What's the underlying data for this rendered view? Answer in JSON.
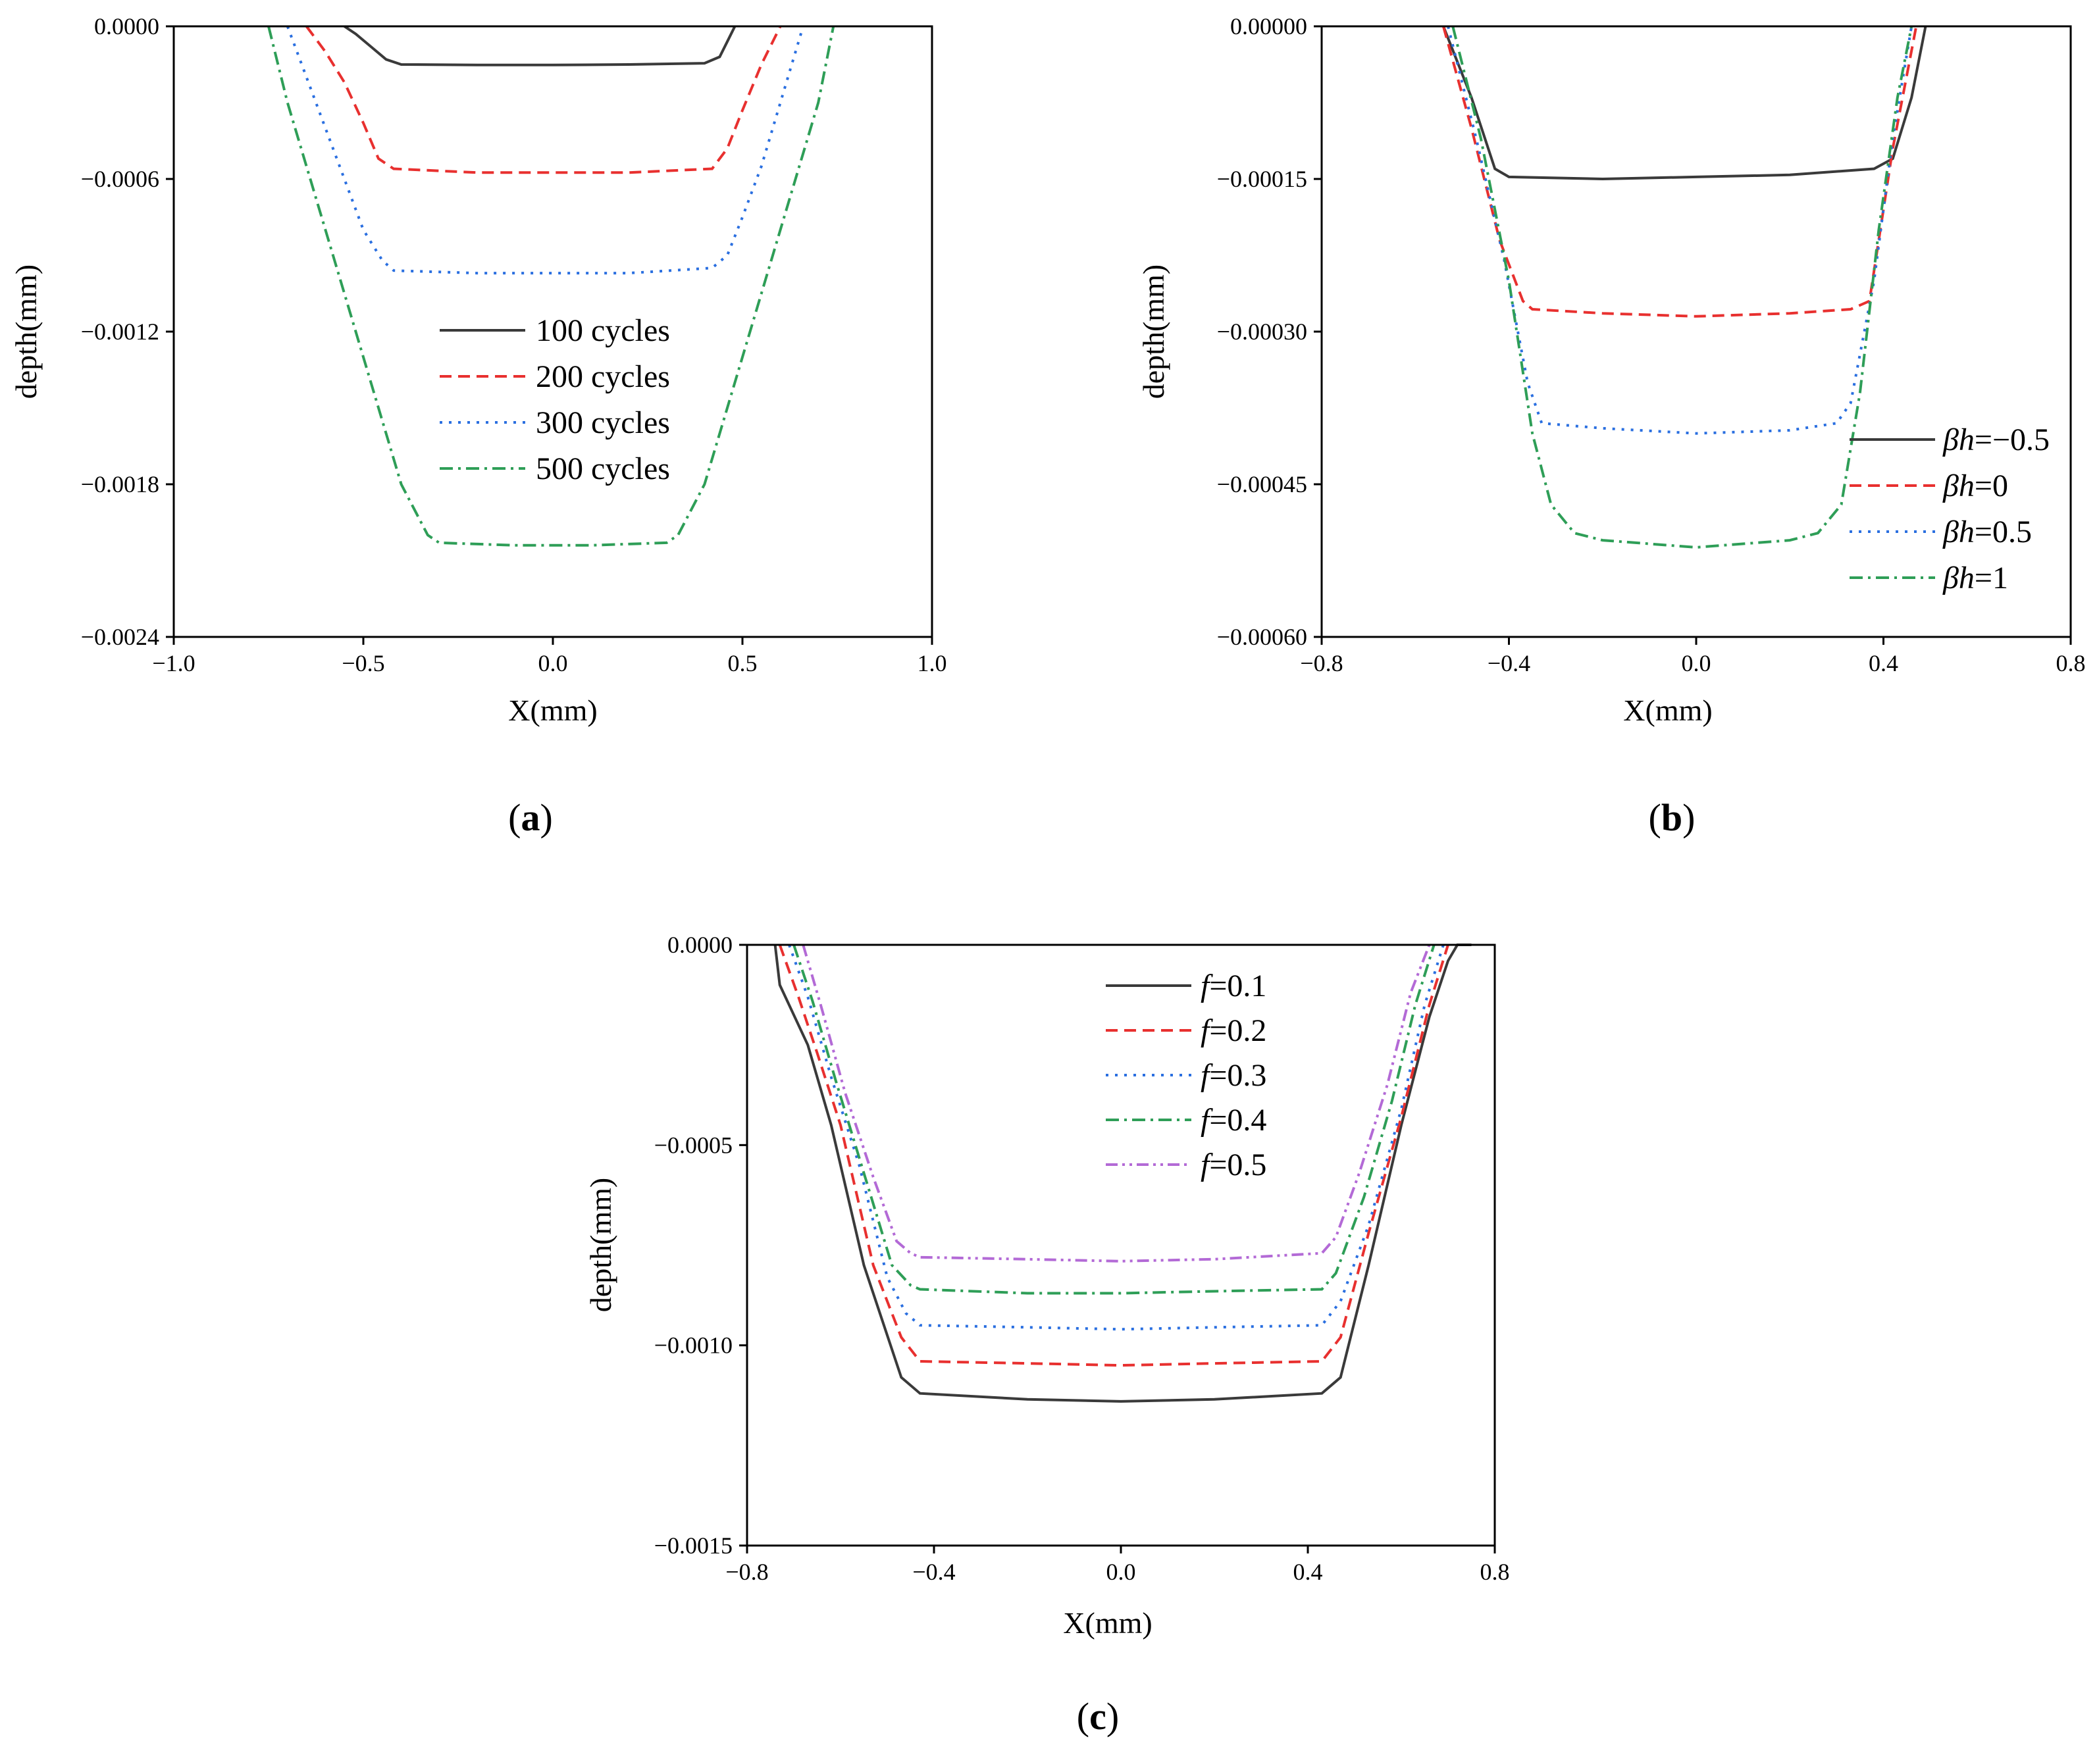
{
  "chart_data": [
    {
      "type": "line",
      "panel_label": "a",
      "xlabel": "X(mm)",
      "ylabel": "depth(mm)",
      "xlim": [
        -1.0,
        1.0
      ],
      "ylim": [
        -0.0024,
        0.0
      ],
      "xticks": [
        -1.0,
        -0.5,
        0.0,
        0.5,
        1.0
      ],
      "xtick_labels": [
        "−1.0",
        "−0.5",
        "0.0",
        "0.5",
        "1.0"
      ],
      "yticks": [
        0.0,
        -0.0006,
        -0.0012,
        -0.0018,
        -0.0024
      ],
      "ytick_labels": [
        "0.0000",
        "−0.0006",
        "−0.0012",
        "−0.0018",
        "−0.0024"
      ],
      "legend_position": "center",
      "series": [
        {
          "name": "100 cycles",
          "color": "#3a3a3a",
          "dash": "solid",
          "x": [
            -0.55,
            -0.52,
            -0.48,
            -0.44,
            -0.4,
            -0.2,
            0.0,
            0.2,
            0.4,
            0.44,
            0.46,
            0.48
          ],
          "y": [
            0.0,
            -3e-05,
            -8e-05,
            -0.00013,
            -0.00015,
            -0.000152,
            -0.000152,
            -0.00015,
            -0.000145,
            -0.00012,
            -6e-05,
            0.0
          ]
        },
        {
          "name": "200 cycles",
          "color": "#e8302f",
          "dash": "dashed",
          "x": [
            -0.65,
            -0.6,
            -0.55,
            -0.5,
            -0.46,
            -0.42,
            -0.2,
            0.0,
            0.2,
            0.42,
            0.46,
            0.5,
            0.55,
            0.6
          ],
          "y": [
            0.0,
            -0.0001,
            -0.00022,
            -0.00038,
            -0.00052,
            -0.00056,
            -0.000575,
            -0.000575,
            -0.000575,
            -0.00056,
            -0.00048,
            -0.00033,
            -0.00015,
            0.0
          ]
        },
        {
          "name": "300 cycles",
          "color": "#2a6fe0",
          "dash": "dotted",
          "x": [
            -0.7,
            -0.65,
            -0.6,
            -0.55,
            -0.5,
            -0.45,
            -0.42,
            -0.2,
            0.0,
            0.2,
            0.42,
            0.46,
            0.5,
            0.55,
            0.6,
            0.66
          ],
          "y": [
            0.0,
            -0.0002,
            -0.0004,
            -0.0006,
            -0.0008,
            -0.00092,
            -0.00096,
            -0.00097,
            -0.00097,
            -0.00097,
            -0.00095,
            -0.0009,
            -0.00075,
            -0.00055,
            -0.0003,
            0.0
          ]
        },
        {
          "name": "500 cycles",
          "color": "#2e9e57",
          "dash": "dashdot",
          "x": [
            -0.75,
            -0.7,
            -0.6,
            -0.5,
            -0.4,
            -0.33,
            -0.3,
            -0.1,
            0.0,
            0.1,
            0.3,
            0.33,
            0.4,
            0.5,
            0.6,
            0.7,
            0.74
          ],
          "y": [
            0.0,
            -0.0003,
            -0.0008,
            -0.0013,
            -0.0018,
            -0.002,
            -0.00203,
            -0.00204,
            -0.00204,
            -0.00204,
            -0.00203,
            -0.002,
            -0.0018,
            -0.0013,
            -0.0008,
            -0.0003,
            0.0
          ]
        }
      ]
    },
    {
      "type": "line",
      "panel_label": "b",
      "xlabel": "X(mm)",
      "ylabel": "depth(mm)",
      "xlim": [
        -0.8,
        0.8
      ],
      "ylim": [
        -0.0006,
        0.0
      ],
      "xticks": [
        -0.8,
        -0.4,
        0.0,
        0.4,
        0.8
      ],
      "xtick_labels": [
        "−0.8",
        "−0.4",
        "0.0",
        "0.4",
        "0.8"
      ],
      "yticks": [
        0.0,
        -0.00015,
        -0.0003,
        -0.00045,
        -0.0006
      ],
      "ytick_labels": [
        "0.00000",
        "−0.00015",
        "−0.00030",
        "−0.00045",
        "−0.00060"
      ],
      "legend_position": "right",
      "series": [
        {
          "name_prefix": "βh",
          "name_value": "=−0.5",
          "color": "#3a3a3a",
          "dash": "solid",
          "x": [
            -0.54,
            -0.48,
            -0.43,
            -0.4,
            -0.2,
            0.0,
            0.2,
            0.38,
            0.42,
            0.46,
            0.49
          ],
          "y": [
            0.0,
            -7e-05,
            -0.00014,
            -0.000148,
            -0.00015,
            -0.000148,
            -0.000146,
            -0.00014,
            -0.00013,
            -7e-05,
            0.0
          ]
        },
        {
          "name_prefix": "βh",
          "name_value": "=0",
          "color": "#e8302f",
          "dash": "dashed",
          "x": [
            -0.54,
            -0.48,
            -0.42,
            -0.37,
            -0.35,
            -0.2,
            0.0,
            0.2,
            0.33,
            0.37,
            0.42,
            0.47
          ],
          "y": [
            0.0,
            -0.0001,
            -0.00021,
            -0.00027,
            -0.000278,
            -0.000282,
            -0.000285,
            -0.000282,
            -0.000278,
            -0.00027,
            -0.00012,
            0.0
          ]
        },
        {
          "name_prefix": "βh",
          "name_value": "=0.5",
          "color": "#2a6fe0",
          "dash": "dotted",
          "x": [
            -0.53,
            -0.47,
            -0.41,
            -0.36,
            -0.33,
            -0.2,
            0.0,
            0.2,
            0.3,
            0.33,
            0.38,
            0.42,
            0.46
          ],
          "y": [
            0.0,
            -0.00011,
            -0.00023,
            -0.00035,
            -0.00039,
            -0.000395,
            -0.0004,
            -0.000397,
            -0.00039,
            -0.00037,
            -0.00025,
            -0.00011,
            0.0
          ]
        },
        {
          "name_prefix": "βh",
          "name_value": "=1",
          "color": "#2e9e57",
          "dash": "dashdot",
          "x": [
            -0.52,
            -0.46,
            -0.4,
            -0.35,
            -0.31,
            -0.26,
            -0.2,
            0.0,
            0.2,
            0.26,
            0.31,
            0.35,
            0.39,
            0.43,
            0.46
          ],
          "y": [
            0.0,
            -0.00011,
            -0.00025,
            -0.0004,
            -0.00047,
            -0.000498,
            -0.000505,
            -0.000512,
            -0.000505,
            -0.000498,
            -0.00047,
            -0.00036,
            -0.0002,
            -7e-05,
            0.0
          ]
        }
      ]
    },
    {
      "type": "line",
      "panel_label": "c",
      "xlabel": "X(mm)",
      "ylabel": "depth(mm)",
      "xlim": [
        -0.8,
        0.8
      ],
      "ylim": [
        -0.0015,
        0.0
      ],
      "xticks": [
        -0.8,
        -0.4,
        0.0,
        0.4,
        0.8
      ],
      "xtick_labels": [
        "−0.8",
        "−0.4",
        "0.0",
        "0.4",
        "0.8"
      ],
      "yticks": [
        0.0,
        -0.0005,
        -0.001,
        -0.0015
      ],
      "ytick_labels": [
        "0.0000",
        "−0.0005",
        "−0.0010",
        "−0.0015"
      ],
      "legend_position": "top-center",
      "series": [
        {
          "name_prefix": "f",
          "name_value": "=0.1",
          "color": "#3a3a3a",
          "dash": "solid",
          "x": [
            -0.74,
            -0.73,
            -0.71,
            -0.67,
            -0.62,
            -0.55,
            -0.47,
            -0.43,
            -0.2,
            0.0,
            0.2,
            0.43,
            0.47,
            0.53,
            0.6,
            0.66,
            0.7,
            0.72,
            0.75
          ],
          "y": [
            0.0,
            -0.0001,
            -0.00015,
            -0.00025,
            -0.00045,
            -0.0008,
            -0.00108,
            -0.00112,
            -0.001135,
            -0.00114,
            -0.001135,
            -0.00112,
            -0.00108,
            -0.0008,
            -0.00045,
            -0.00018,
            -4e-05,
            0.0,
            0.0
          ]
        },
        {
          "name_prefix": "f",
          "name_value": "=0.2",
          "color": "#e8302f",
          "dash": "dashed",
          "x": [
            -0.73,
            -0.69,
            -0.65,
            -0.6,
            -0.53,
            -0.47,
            -0.43,
            -0.2,
            0.0,
            0.2,
            0.43,
            0.47,
            0.53,
            0.6,
            0.66,
            0.7
          ],
          "y": [
            0.0,
            -0.00013,
            -0.00027,
            -0.00045,
            -0.0008,
            -0.00098,
            -0.00104,
            -0.001045,
            -0.00105,
            -0.001045,
            -0.00104,
            -0.00098,
            -0.00072,
            -0.00043,
            -0.00015,
            0.0
          ]
        },
        {
          "name_prefix": "f",
          "name_value": "=0.3",
          "color": "#2a6fe0",
          "dash": "dotted",
          "x": [
            -0.71,
            -0.67,
            -0.62,
            -0.56,
            -0.5,
            -0.46,
            -0.43,
            -0.2,
            0.0,
            0.2,
            0.43,
            0.47,
            0.53,
            0.6,
            0.65,
            0.69
          ],
          "y": [
            0.0,
            -0.00013,
            -0.00033,
            -0.00055,
            -0.00083,
            -0.00092,
            -0.00095,
            -0.000955,
            -0.00096,
            -0.000955,
            -0.00095,
            -0.00089,
            -0.0007,
            -0.00041,
            -0.00015,
            0.0
          ]
        },
        {
          "name_prefix": "f",
          "name_value": "=0.4",
          "color": "#2e9e57",
          "dash": "dashdot",
          "x": [
            -0.7,
            -0.66,
            -0.61,
            -0.55,
            -0.49,
            -0.45,
            -0.43,
            -0.2,
            0.0,
            0.2,
            0.43,
            0.46,
            0.52,
            0.58,
            0.63,
            0.67
          ],
          "y": [
            0.0,
            -0.00014,
            -0.00034,
            -0.00057,
            -0.0008,
            -0.00085,
            -0.00086,
            -0.00087,
            -0.00087,
            -0.000865,
            -0.00086,
            -0.00082,
            -0.00063,
            -0.00039,
            -0.00015,
            0.0
          ]
        },
        {
          "name_prefix": "f",
          "name_value": "=0.5",
          "color": "#b36ad6",
          "dash": "dashdotdot",
          "x": [
            -0.68,
            -0.64,
            -0.59,
            -0.53,
            -0.48,
            -0.45,
            -0.43,
            -0.2,
            0.0,
            0.2,
            0.43,
            0.46,
            0.51,
            0.57,
            0.62,
            0.66
          ],
          "y": [
            0.0,
            -0.00016,
            -0.00037,
            -0.00058,
            -0.00074,
            -0.00077,
            -0.00078,
            -0.000785,
            -0.00079,
            -0.000785,
            -0.00077,
            -0.00073,
            -0.00057,
            -0.00035,
            -0.00012,
            0.0
          ]
        }
      ]
    }
  ]
}
